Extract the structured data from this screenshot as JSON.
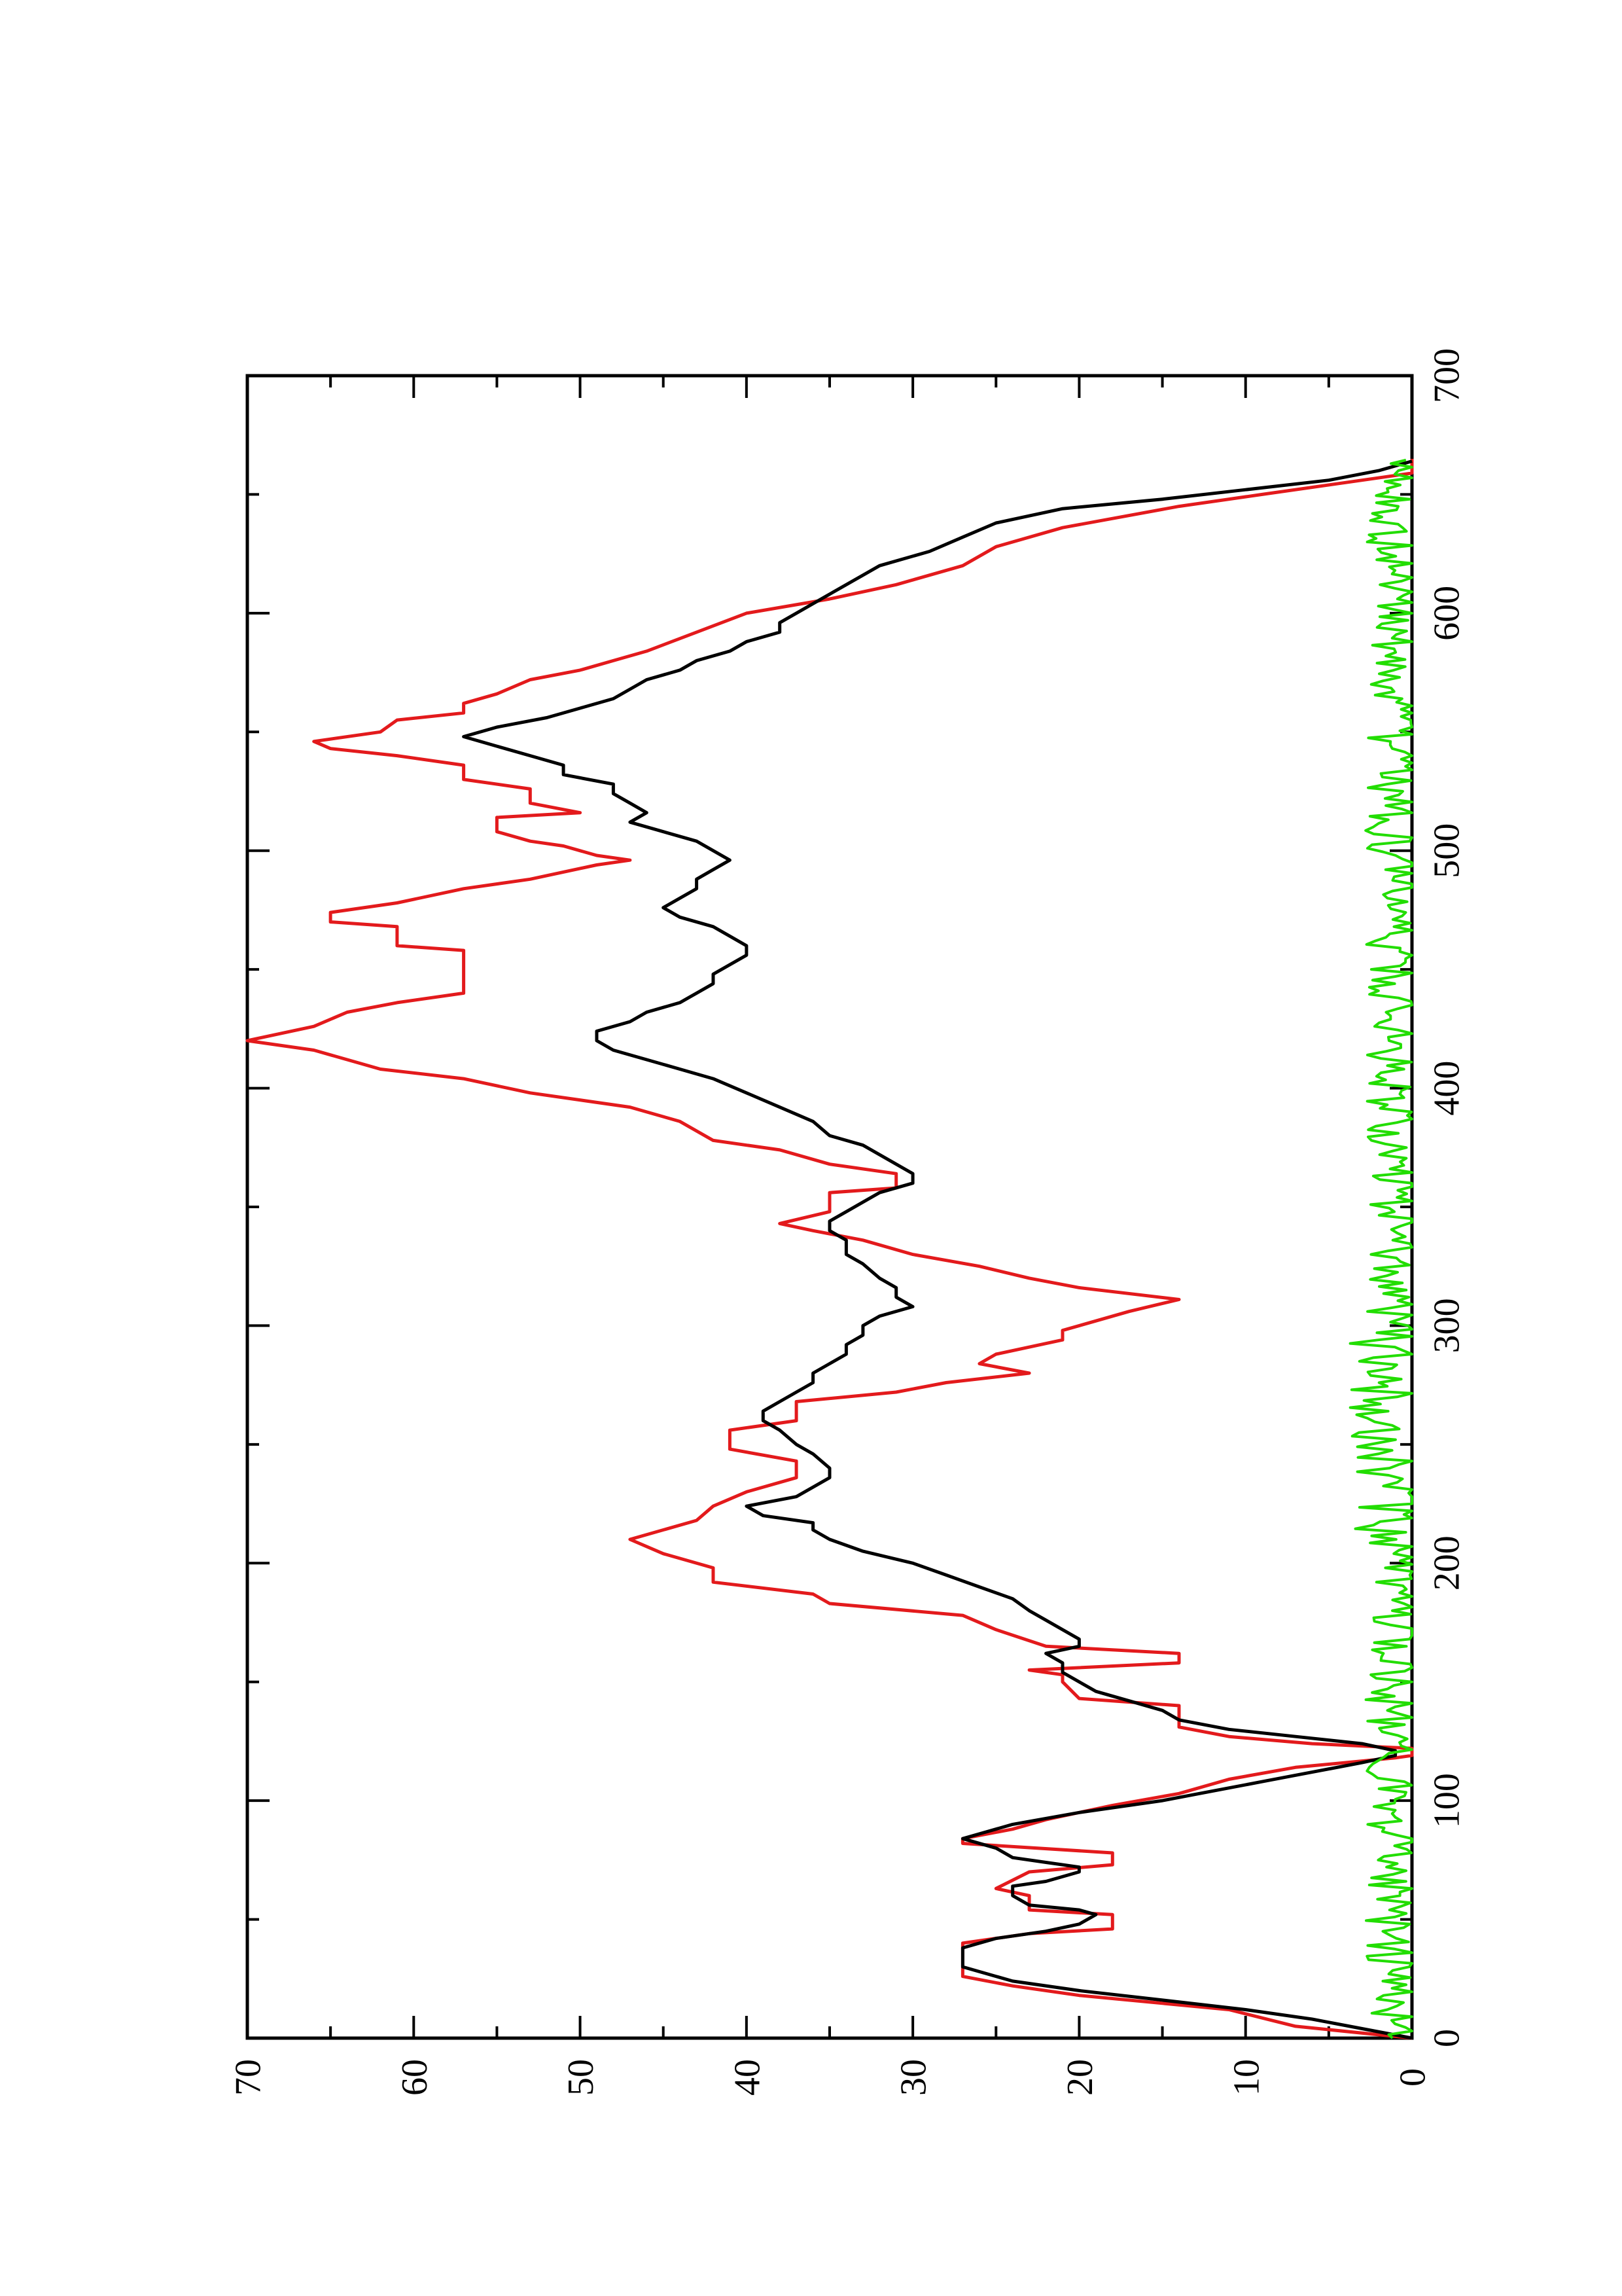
{
  "chart_data": {
    "type": "line",
    "orientation": "rotated-90-ccw",
    "title": "",
    "xlabel": "",
    "ylabel": "",
    "xlim": [
      0,
      700
    ],
    "ylim": [
      0,
      70
    ],
    "x_ticks": [
      0,
      100,
      200,
      300,
      400,
      500,
      600,
      700
    ],
    "y_ticks": [
      0,
      10,
      20,
      30,
      40,
      50,
      60,
      70
    ],
    "x_tick_labels": [
      "0",
      "100",
      "200",
      "300",
      "400",
      "500",
      "600",
      "700"
    ],
    "y_tick_labels": [
      "0",
      "10",
      "20",
      "30",
      "40",
      "50",
      "60",
      "70"
    ],
    "grid": false,
    "series": [
      {
        "color": "#e31a1c",
        "style": "step",
        "points": [
          [
            0,
            0
          ],
          [
            5,
            7
          ],
          [
            12,
            11
          ],
          [
            18,
            20
          ],
          [
            22,
            24
          ],
          [
            26,
            27
          ],
          [
            40,
            27
          ],
          [
            44,
            23
          ],
          [
            46,
            18
          ],
          [
            52,
            18
          ],
          [
            54,
            23
          ],
          [
            60,
            23
          ],
          [
            63,
            25
          ],
          [
            70,
            23
          ],
          [
            73,
            18
          ],
          [
            78,
            18
          ],
          [
            82,
            27
          ],
          [
            84,
            27
          ],
          [
            88,
            24
          ],
          [
            92,
            22
          ],
          [
            98,
            18
          ],
          [
            103,
            14
          ],
          [
            109,
            11
          ],
          [
            114,
            7
          ],
          [
            118,
            1
          ],
          [
            119,
            0
          ],
          [
            122,
            0
          ],
          [
            124,
            6
          ],
          [
            127,
            11
          ],
          [
            131,
            14
          ],
          [
            140,
            14
          ],
          [
            143,
            20
          ],
          [
            150,
            21
          ],
          [
            153,
            21
          ],
          [
            155,
            23
          ],
          [
            158,
            14
          ],
          [
            162,
            14
          ],
          [
            165,
            22
          ],
          [
            172,
            25
          ],
          [
            178,
            27
          ],
          [
            183,
            35
          ],
          [
            187,
            36
          ],
          [
            192,
            42
          ],
          [
            198,
            42
          ],
          [
            204,
            45
          ],
          [
            210,
            47
          ],
          [
            218,
            43
          ],
          [
            224,
            42
          ],
          [
            230,
            40
          ],
          [
            236,
            37
          ],
          [
            243,
            37
          ],
          [
            248,
            41
          ],
          [
            256,
            41
          ],
          [
            260,
            37
          ],
          [
            268,
            37
          ],
          [
            272,
            31
          ],
          [
            276,
            28
          ],
          [
            280,
            23
          ],
          [
            284,
            26
          ],
          [
            288,
            25
          ],
          [
            294,
            21
          ],
          [
            298,
            21
          ],
          [
            302,
            19
          ],
          [
            306,
            17
          ],
          [
            311,
            14
          ],
          [
            316,
            20
          ],
          [
            320,
            23
          ],
          [
            325,
            26
          ],
          [
            330,
            30
          ],
          [
            336,
            33
          ],
          [
            340,
            36
          ],
          [
            343,
            38
          ],
          [
            348,
            35
          ],
          [
            356,
            35
          ],
          [
            358,
            31
          ],
          [
            364,
            31
          ],
          [
            368,
            35
          ],
          [
            374,
            38
          ],
          [
            378,
            42
          ],
          [
            386,
            44
          ],
          [
            392,
            47
          ],
          [
            398,
            53
          ],
          [
            404,
            57
          ],
          [
            408,
            62
          ],
          [
            412,
            64
          ],
          [
            416,
            66
          ],
          [
            420,
            70
          ],
          [
            426,
            66
          ],
          [
            432,
            64
          ],
          [
            436,
            61
          ],
          [
            440,
            57
          ],
          [
            458,
            57
          ],
          [
            460,
            61
          ],
          [
            468,
            61
          ],
          [
            470,
            65
          ],
          [
            474,
            65
          ],
          [
            478,
            61
          ],
          [
            484,
            57
          ],
          [
            488,
            53
          ],
          [
            494,
            49
          ],
          [
            496,
            47
          ],
          [
            498,
            49
          ],
          [
            502,
            51
          ],
          [
            504,
            53
          ],
          [
            508,
            55
          ],
          [
            514,
            55
          ],
          [
            516,
            50
          ],
          [
            520,
            53
          ],
          [
            526,
            53
          ],
          [
            530,
            57
          ],
          [
            536,
            57
          ],
          [
            540,
            61
          ],
          [
            543,
            65
          ],
          [
            546,
            66
          ],
          [
            550,
            62
          ],
          [
            555,
            61
          ],
          [
            558,
            57
          ],
          [
            562,
            57
          ],
          [
            566,
            55
          ],
          [
            572,
            53
          ],
          [
            576,
            50
          ],
          [
            580,
            48
          ],
          [
            584,
            46
          ],
          [
            592,
            43
          ],
          [
            600,
            40
          ],
          [
            606,
            35
          ],
          [
            612,
            31
          ],
          [
            620,
            27
          ],
          [
            628,
            25
          ],
          [
            636,
            21
          ],
          [
            645,
            14
          ],
          [
            650,
            9
          ],
          [
            655,
            4
          ],
          [
            659,
            0
          ],
          [
            665,
            0
          ]
        ]
      },
      {
        "color": "#000000",
        "style": "smooth",
        "points": [
          [
            0,
            0
          ],
          [
            4,
            3
          ],
          [
            8,
            6
          ],
          [
            12,
            10
          ],
          [
            16,
            15
          ],
          [
            20,
            20
          ],
          [
            24,
            24
          ],
          [
            30,
            27
          ],
          [
            38,
            27
          ],
          [
            42,
            25
          ],
          [
            45,
            22
          ],
          [
            48,
            20
          ],
          [
            52,
            19
          ],
          [
            54,
            20
          ],
          [
            56,
            23
          ],
          [
            60,
            24
          ],
          [
            64,
            24
          ],
          [
            66,
            22
          ],
          [
            70,
            20
          ],
          [
            72,
            20
          ],
          [
            74,
            22
          ],
          [
            76,
            24
          ],
          [
            80,
            25
          ],
          [
            84,
            27
          ],
          [
            86,
            26
          ],
          [
            90,
            24
          ],
          [
            95,
            20
          ],
          [
            100,
            15
          ],
          [
            104,
            12
          ],
          [
            108,
            9
          ],
          [
            112,
            6
          ],
          [
            116,
            3
          ],
          [
            119,
            1
          ],
          [
            121,
            1
          ],
          [
            124,
            3
          ],
          [
            127,
            7
          ],
          [
            130,
            11
          ],
          [
            134,
            14
          ],
          [
            138,
            15
          ],
          [
            142,
            17
          ],
          [
            146,
            19
          ],
          [
            150,
            20
          ],
          [
            154,
            21
          ],
          [
            158,
            21
          ],
          [
            162,
            22
          ],
          [
            165,
            20
          ],
          [
            168,
            20
          ],
          [
            172,
            21
          ],
          [
            176,
            22
          ],
          [
            180,
            23
          ],
          [
            185,
            24
          ],
          [
            190,
            26
          ],
          [
            195,
            28
          ],
          [
            200,
            30
          ],
          [
            205,
            33
          ],
          [
            210,
            35
          ],
          [
            214,
            36
          ],
          [
            217,
            36
          ],
          [
            220,
            39
          ],
          [
            224,
            40
          ],
          [
            228,
            37
          ],
          [
            232,
            36
          ],
          [
            236,
            35
          ],
          [
            240,
            35
          ],
          [
            246,
            36
          ],
          [
            250,
            37
          ],
          [
            256,
            38
          ],
          [
            260,
            39
          ],
          [
            264,
            39
          ],
          [
            268,
            38
          ],
          [
            272,
            37
          ],
          [
            276,
            36
          ],
          [
            280,
            36
          ],
          [
            284,
            35
          ],
          [
            288,
            34
          ],
          [
            292,
            34
          ],
          [
            296,
            33
          ],
          [
            300,
            33
          ],
          [
            304,
            32
          ],
          [
            308,
            30
          ],
          [
            312,
            31
          ],
          [
            316,
            31
          ],
          [
            320,
            32
          ],
          [
            326,
            33
          ],
          [
            330,
            34
          ],
          [
            336,
            34
          ],
          [
            340,
            35
          ],
          [
            344,
            35
          ],
          [
            348,
            34
          ],
          [
            352,
            33
          ],
          [
            356,
            32
          ],
          [
            360,
            30
          ],
          [
            364,
            30
          ],
          [
            368,
            31
          ],
          [
            372,
            32
          ],
          [
            376,
            33
          ],
          [
            380,
            35
          ],
          [
            386,
            36
          ],
          [
            392,
            38
          ],
          [
            398,
            40
          ],
          [
            404,
            42
          ],
          [
            408,
            44
          ],
          [
            412,
            46
          ],
          [
            416,
            48
          ],
          [
            420,
            49
          ],
          [
            424,
            49
          ],
          [
            428,
            47
          ],
          [
            432,
            46
          ],
          [
            436,
            44
          ],
          [
            440,
            43
          ],
          [
            444,
            42
          ],
          [
            448,
            42
          ],
          [
            452,
            41
          ],
          [
            456,
            40
          ],
          [
            460,
            40
          ],
          [
            464,
            41
          ],
          [
            468,
            42
          ],
          [
            472,
            44
          ],
          [
            476,
            45
          ],
          [
            480,
            44
          ],
          [
            484,
            43
          ],
          [
            488,
            43
          ],
          [
            492,
            42
          ],
          [
            496,
            41
          ],
          [
            500,
            42
          ],
          [
            504,
            43
          ],
          [
            508,
            45
          ],
          [
            512,
            47
          ],
          [
            516,
            46
          ],
          [
            520,
            47
          ],
          [
            524,
            48
          ],
          [
            528,
            48
          ],
          [
            532,
            51
          ],
          [
            536,
            51
          ],
          [
            540,
            53
          ],
          [
            544,
            55
          ],
          [
            548,
            57
          ],
          [
            552,
            55
          ],
          [
            556,
            52
          ],
          [
            560,
            50
          ],
          [
            564,
            48
          ],
          [
            568,
            47
          ],
          [
            572,
            46
          ],
          [
            576,
            44
          ],
          [
            580,
            43
          ],
          [
            584,
            41
          ],
          [
            588,
            40
          ],
          [
            592,
            38
          ],
          [
            596,
            38
          ],
          [
            600,
            37
          ],
          [
            604,
            36
          ],
          [
            608,
            35
          ],
          [
            612,
            34
          ],
          [
            616,
            33
          ],
          [
            620,
            32
          ],
          [
            626,
            29
          ],
          [
            632,
            27
          ],
          [
            638,
            25
          ],
          [
            644,
            21
          ],
          [
            648,
            15
          ],
          [
            652,
            10
          ],
          [
            656,
            5
          ],
          [
            660,
            2
          ],
          [
            664,
            0
          ]
        ]
      },
      {
        "color": "#22dd00",
        "style": "noisy",
        "baseline": 1.2,
        "amplitude": 1.6,
        "x_start": 0,
        "x_end": 665
      }
    ]
  }
}
